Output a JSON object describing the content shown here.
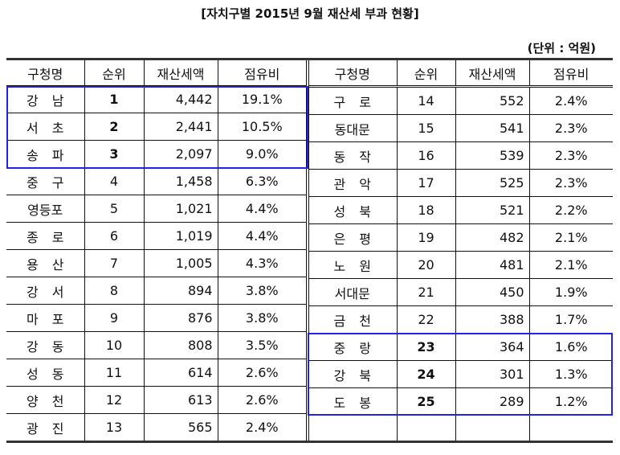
{
  "title": "[자치구별 2015년 9월 재산세 부과 현황]",
  "unit_label": "(단위 : 억원)",
  "columns": {
    "name": "구청명",
    "rank": "순위",
    "amount": "재산세액",
    "share": "점유비"
  },
  "highlight_color": "#2323e6",
  "left_rows": [
    {
      "name": "강 남",
      "rank": "1",
      "amount": "4,442",
      "share": "19.1%",
      "bold_rank": true
    },
    {
      "name": "서 초",
      "rank": "2",
      "amount": "2,441",
      "share": "10.5%",
      "bold_rank": true
    },
    {
      "name": "송 파",
      "rank": "3",
      "amount": "2,097",
      "share": "9.0%",
      "bold_rank": true
    },
    {
      "name": "중 구",
      "rank": "4",
      "amount": "1,458",
      "share": "6.3%"
    },
    {
      "name": "영등포",
      "rank": "5",
      "amount": "1,021",
      "share": "4.4%"
    },
    {
      "name": "종 로",
      "rank": "6",
      "amount": "1,019",
      "share": "4.4%"
    },
    {
      "name": "용 산",
      "rank": "7",
      "amount": "1,005",
      "share": "4.3%"
    },
    {
      "name": "강 서",
      "rank": "8",
      "amount": "894",
      "share": "3.8%"
    },
    {
      "name": "마 포",
      "rank": "9",
      "amount": "876",
      "share": "3.8%"
    },
    {
      "name": "강 동",
      "rank": "10",
      "amount": "808",
      "share": "3.5%"
    },
    {
      "name": "성 동",
      "rank": "11",
      "amount": "614",
      "share": "2.6%"
    },
    {
      "name": "양 천",
      "rank": "12",
      "amount": "613",
      "share": "2.6%"
    },
    {
      "name": "광 진",
      "rank": "13",
      "amount": "565",
      "share": "2.4%"
    }
  ],
  "right_rows": [
    {
      "name": "구 로",
      "rank": "14",
      "amount": "552",
      "share": "2.4%"
    },
    {
      "name": "동대문",
      "rank": "15",
      "amount": "541",
      "share": "2.3%"
    },
    {
      "name": "동 작",
      "rank": "16",
      "amount": "539",
      "share": "2.3%"
    },
    {
      "name": "관 악",
      "rank": "17",
      "amount": "525",
      "share": "2.3%"
    },
    {
      "name": "성 북",
      "rank": "18",
      "amount": "521",
      "share": "2.2%"
    },
    {
      "name": "은 평",
      "rank": "19",
      "amount": "482",
      "share": "2.1%"
    },
    {
      "name": "노 원",
      "rank": "20",
      "amount": "481",
      "share": "2.1%"
    },
    {
      "name": "서대문",
      "rank": "21",
      "amount": "450",
      "share": "1.9%"
    },
    {
      "name": "금 천",
      "rank": "22",
      "amount": "388",
      "share": "1.7%"
    },
    {
      "name": "중 랑",
      "rank": "23",
      "amount": "364",
      "share": "1.6%",
      "bold_rank": true
    },
    {
      "name": "강 북",
      "rank": "24",
      "amount": "301",
      "share": "1.3%",
      "bold_rank": true
    },
    {
      "name": "도 봉",
      "rank": "25",
      "amount": "289",
      "share": "1.2%",
      "bold_rank": true
    },
    {
      "name": "",
      "rank": "",
      "amount": "",
      "share": ""
    }
  ]
}
